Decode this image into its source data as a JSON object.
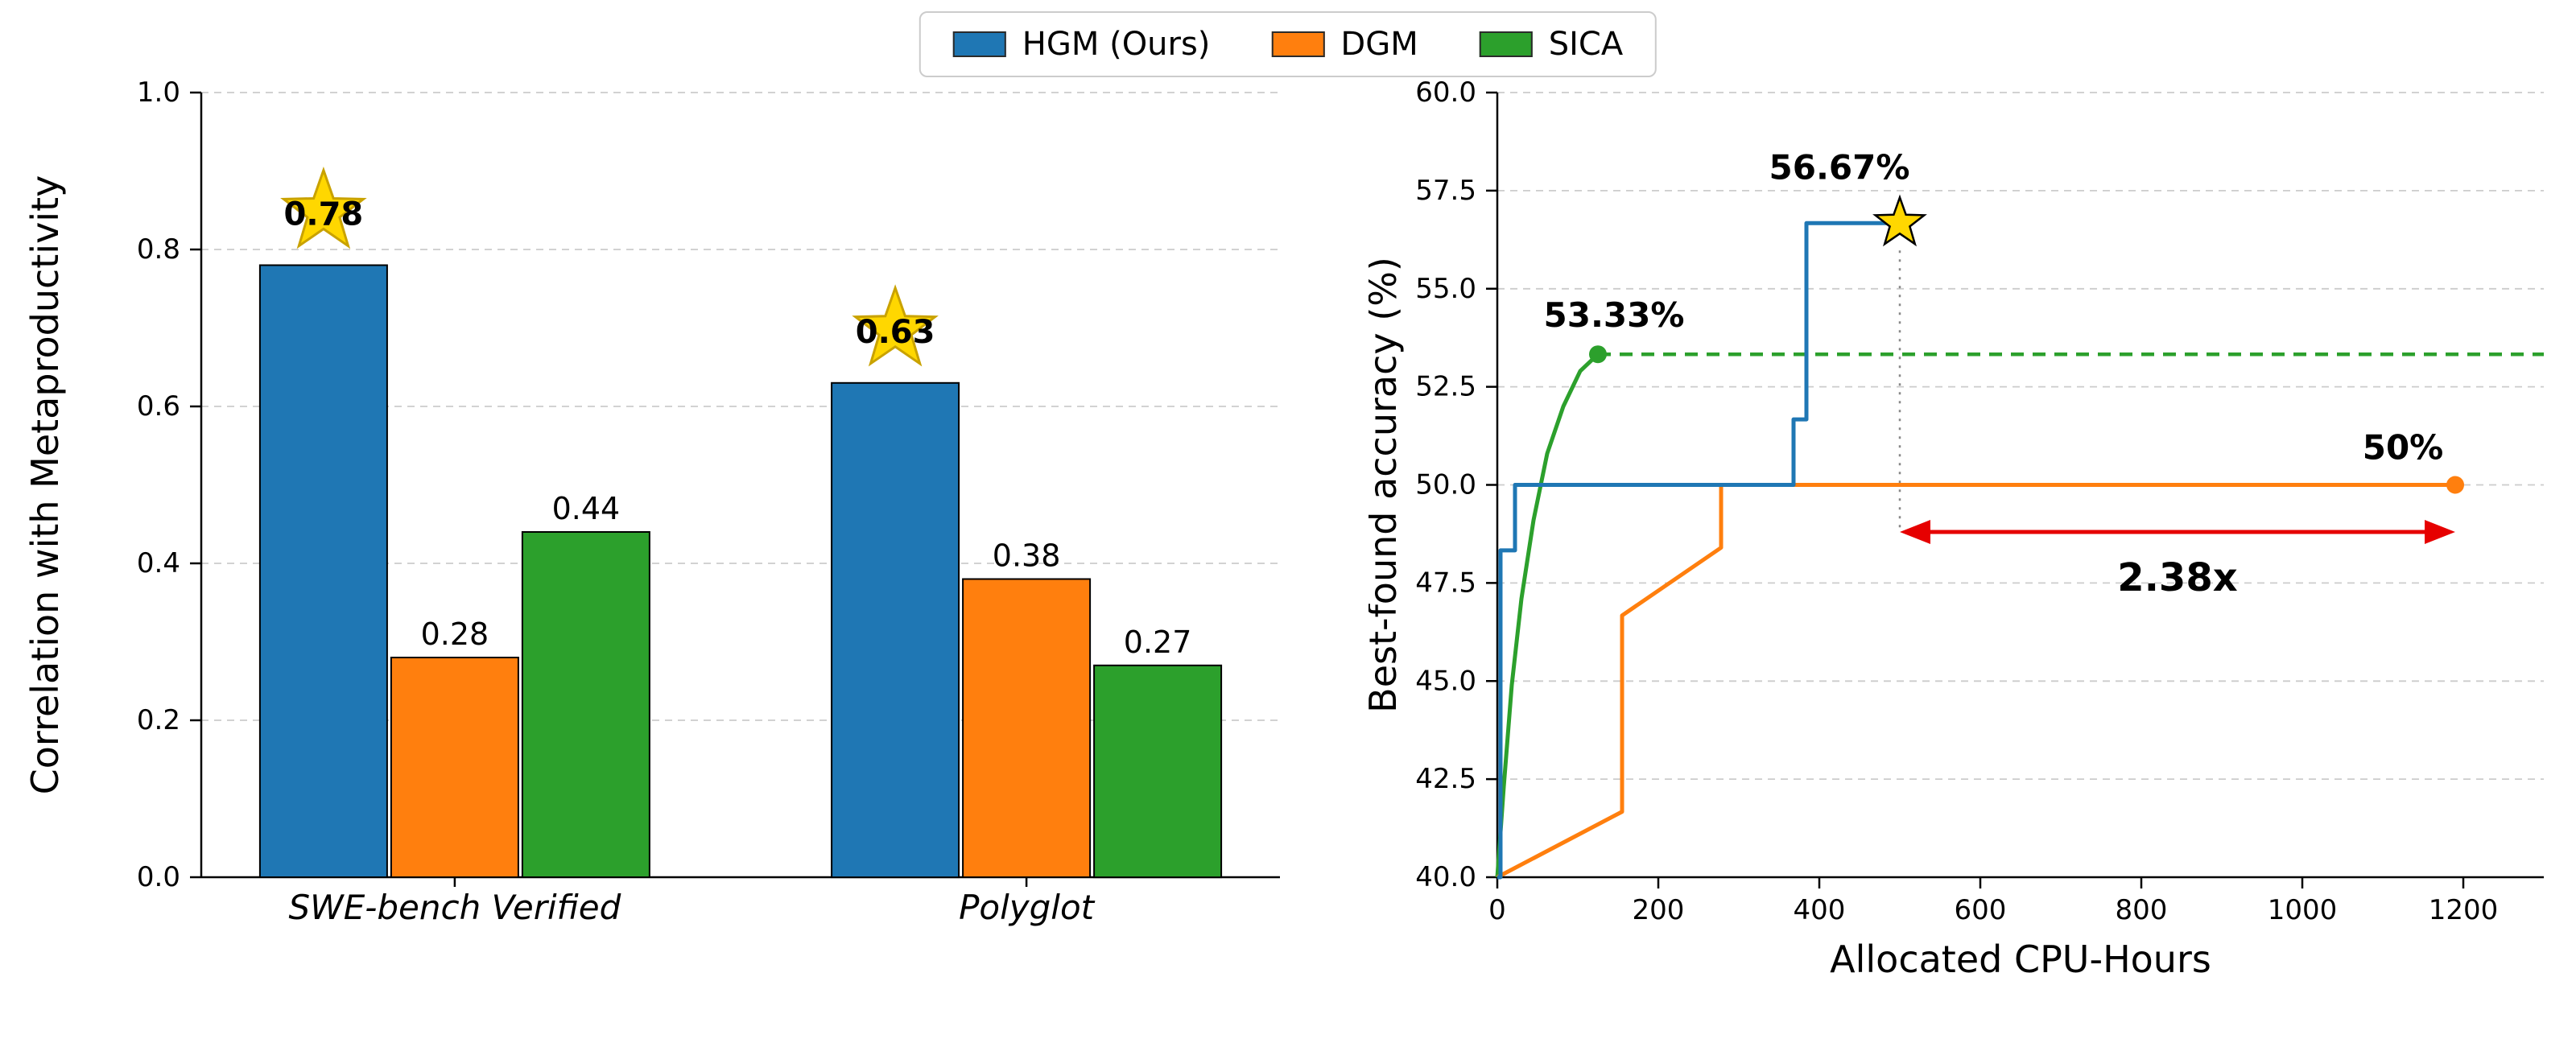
{
  "legend": {
    "items": [
      {
        "label": "HGM (Ours)",
        "color": "#1f77b4"
      },
      {
        "label": "DGM",
        "color": "#ff7f0e"
      },
      {
        "label": "SICA",
        "color": "#2ca02c"
      }
    ]
  },
  "colors": {
    "hgm_blue": "#1f77b4",
    "dgm_orange": "#ff7f0e",
    "sica_green": "#2ca02c",
    "star_fill": "#FFD700",
    "star_edge": "#C9A200",
    "speedup_red": "#E60000",
    "grid": "#cccccc",
    "axis": "#000000",
    "vline": "#888888"
  },
  "chart_data": [
    {
      "type": "bar",
      "title": "",
      "xlabel": "",
      "ylabel": "Correlation with Metaproductivity",
      "categories": [
        "SWE-bench Verified",
        "Polyglot"
      ],
      "series": [
        {
          "name": "HGM (Ours)",
          "color": "#1f77b4",
          "values": [
            0.78,
            0.63
          ]
        },
        {
          "name": "DGM",
          "color": "#ff7f0e",
          "values": [
            0.28,
            0.38
          ]
        },
        {
          "name": "SICA",
          "color": "#2ca02c",
          "values": [
            0.44,
            0.27
          ]
        }
      ],
      "bar_labels": [
        [
          "0.78",
          "0.28",
          "0.44"
        ],
        [
          "0.63",
          "0.38",
          "0.27"
        ]
      ],
      "starred": [
        [
          true,
          false,
          false
        ],
        [
          true,
          false,
          false
        ]
      ],
      "ylim": [
        0,
        1.0
      ],
      "yticks": [
        0,
        0.2,
        0.4,
        0.6,
        0.8,
        1.0
      ],
      "ytick_labels": [
        "0.0",
        "0.2",
        "0.4",
        "0.6",
        "0.8",
        "1.0"
      ],
      "grid": "horizontal-dashed",
      "legend_position": "top-center-of-figure"
    },
    {
      "type": "line",
      "title": "",
      "xlabel": "Allocated CPU-Hours",
      "ylabel": "Best-found accuracy (%)",
      "xlim": [
        0,
        1300
      ],
      "ylim": [
        40,
        60
      ],
      "xticks": [
        0,
        200,
        400,
        600,
        800,
        1000,
        1200
      ],
      "xtick_labels": [
        "0",
        "200",
        "400",
        "600",
        "800",
        "1000",
        "1200"
      ],
      "yticks": [
        40,
        42.5,
        45,
        47.5,
        50,
        52.5,
        55,
        57.5,
        60
      ],
      "ytick_labels": [
        "40.0",
        "42.5",
        "45.0",
        "47.5",
        "50.0",
        "52.5",
        "55.0",
        "57.5",
        "60.0"
      ],
      "grid": "horizontal-dashed",
      "series": [
        {
          "name": "HGM (Ours)",
          "color": "#1f77b4",
          "style": "step",
          "points": [
            [
              0,
              40
            ],
            [
              4,
              40
            ],
            [
              4,
              48.33
            ],
            [
              22,
              48.33
            ],
            [
              22,
              50
            ],
            [
              368,
              50
            ],
            [
              368,
              51.67
            ],
            [
              384,
              51.67
            ],
            [
              384,
              56.67
            ],
            [
              500,
              56.67
            ]
          ],
          "end_marker": "star",
          "end_label": "56.67%",
          "end_label_offset": [
            -75,
            -55
          ]
        },
        {
          "name": "DGM",
          "color": "#ff7f0e",
          "style": "step",
          "points": [
            [
              0,
              40
            ],
            [
              155,
              41.67
            ],
            [
              155,
              46.67
            ],
            [
              278,
              48.4
            ],
            [
              278,
              50
            ],
            [
              1190,
              50
            ]
          ],
          "end_marker": "dot",
          "end_label": "50%",
          "end_label_offset": [
            -65,
            -32
          ]
        },
        {
          "name": "SICA",
          "color": "#2ca02c",
          "style": "curve",
          "points": [
            [
              0,
              40
            ],
            [
              8,
              42.3
            ],
            [
              18,
              44.9
            ],
            [
              30,
              47.1
            ],
            [
              45,
              49.1
            ],
            [
              62,
              50.8
            ],
            [
              82,
              52.0
            ],
            [
              103,
              52.9
            ],
            [
              125,
              53.33
            ]
          ],
          "end_marker": "dot",
          "end_label": "53.33%",
          "end_label_offset": [
            20,
            -34
          ],
          "dashed_extension": {
            "to_x": 1300,
            "y": 53.33
          }
        }
      ],
      "annotations": {
        "speedup_arrow": {
          "x1": 500,
          "x2": 1190,
          "y": 48.8,
          "label": "2.38x",
          "label_y": 47.3,
          "color": "#E60000"
        },
        "dotted_vline": {
          "x": 500,
          "y_top": 56.67,
          "y_bottom": 48.8,
          "color": "#888888"
        }
      }
    }
  ]
}
